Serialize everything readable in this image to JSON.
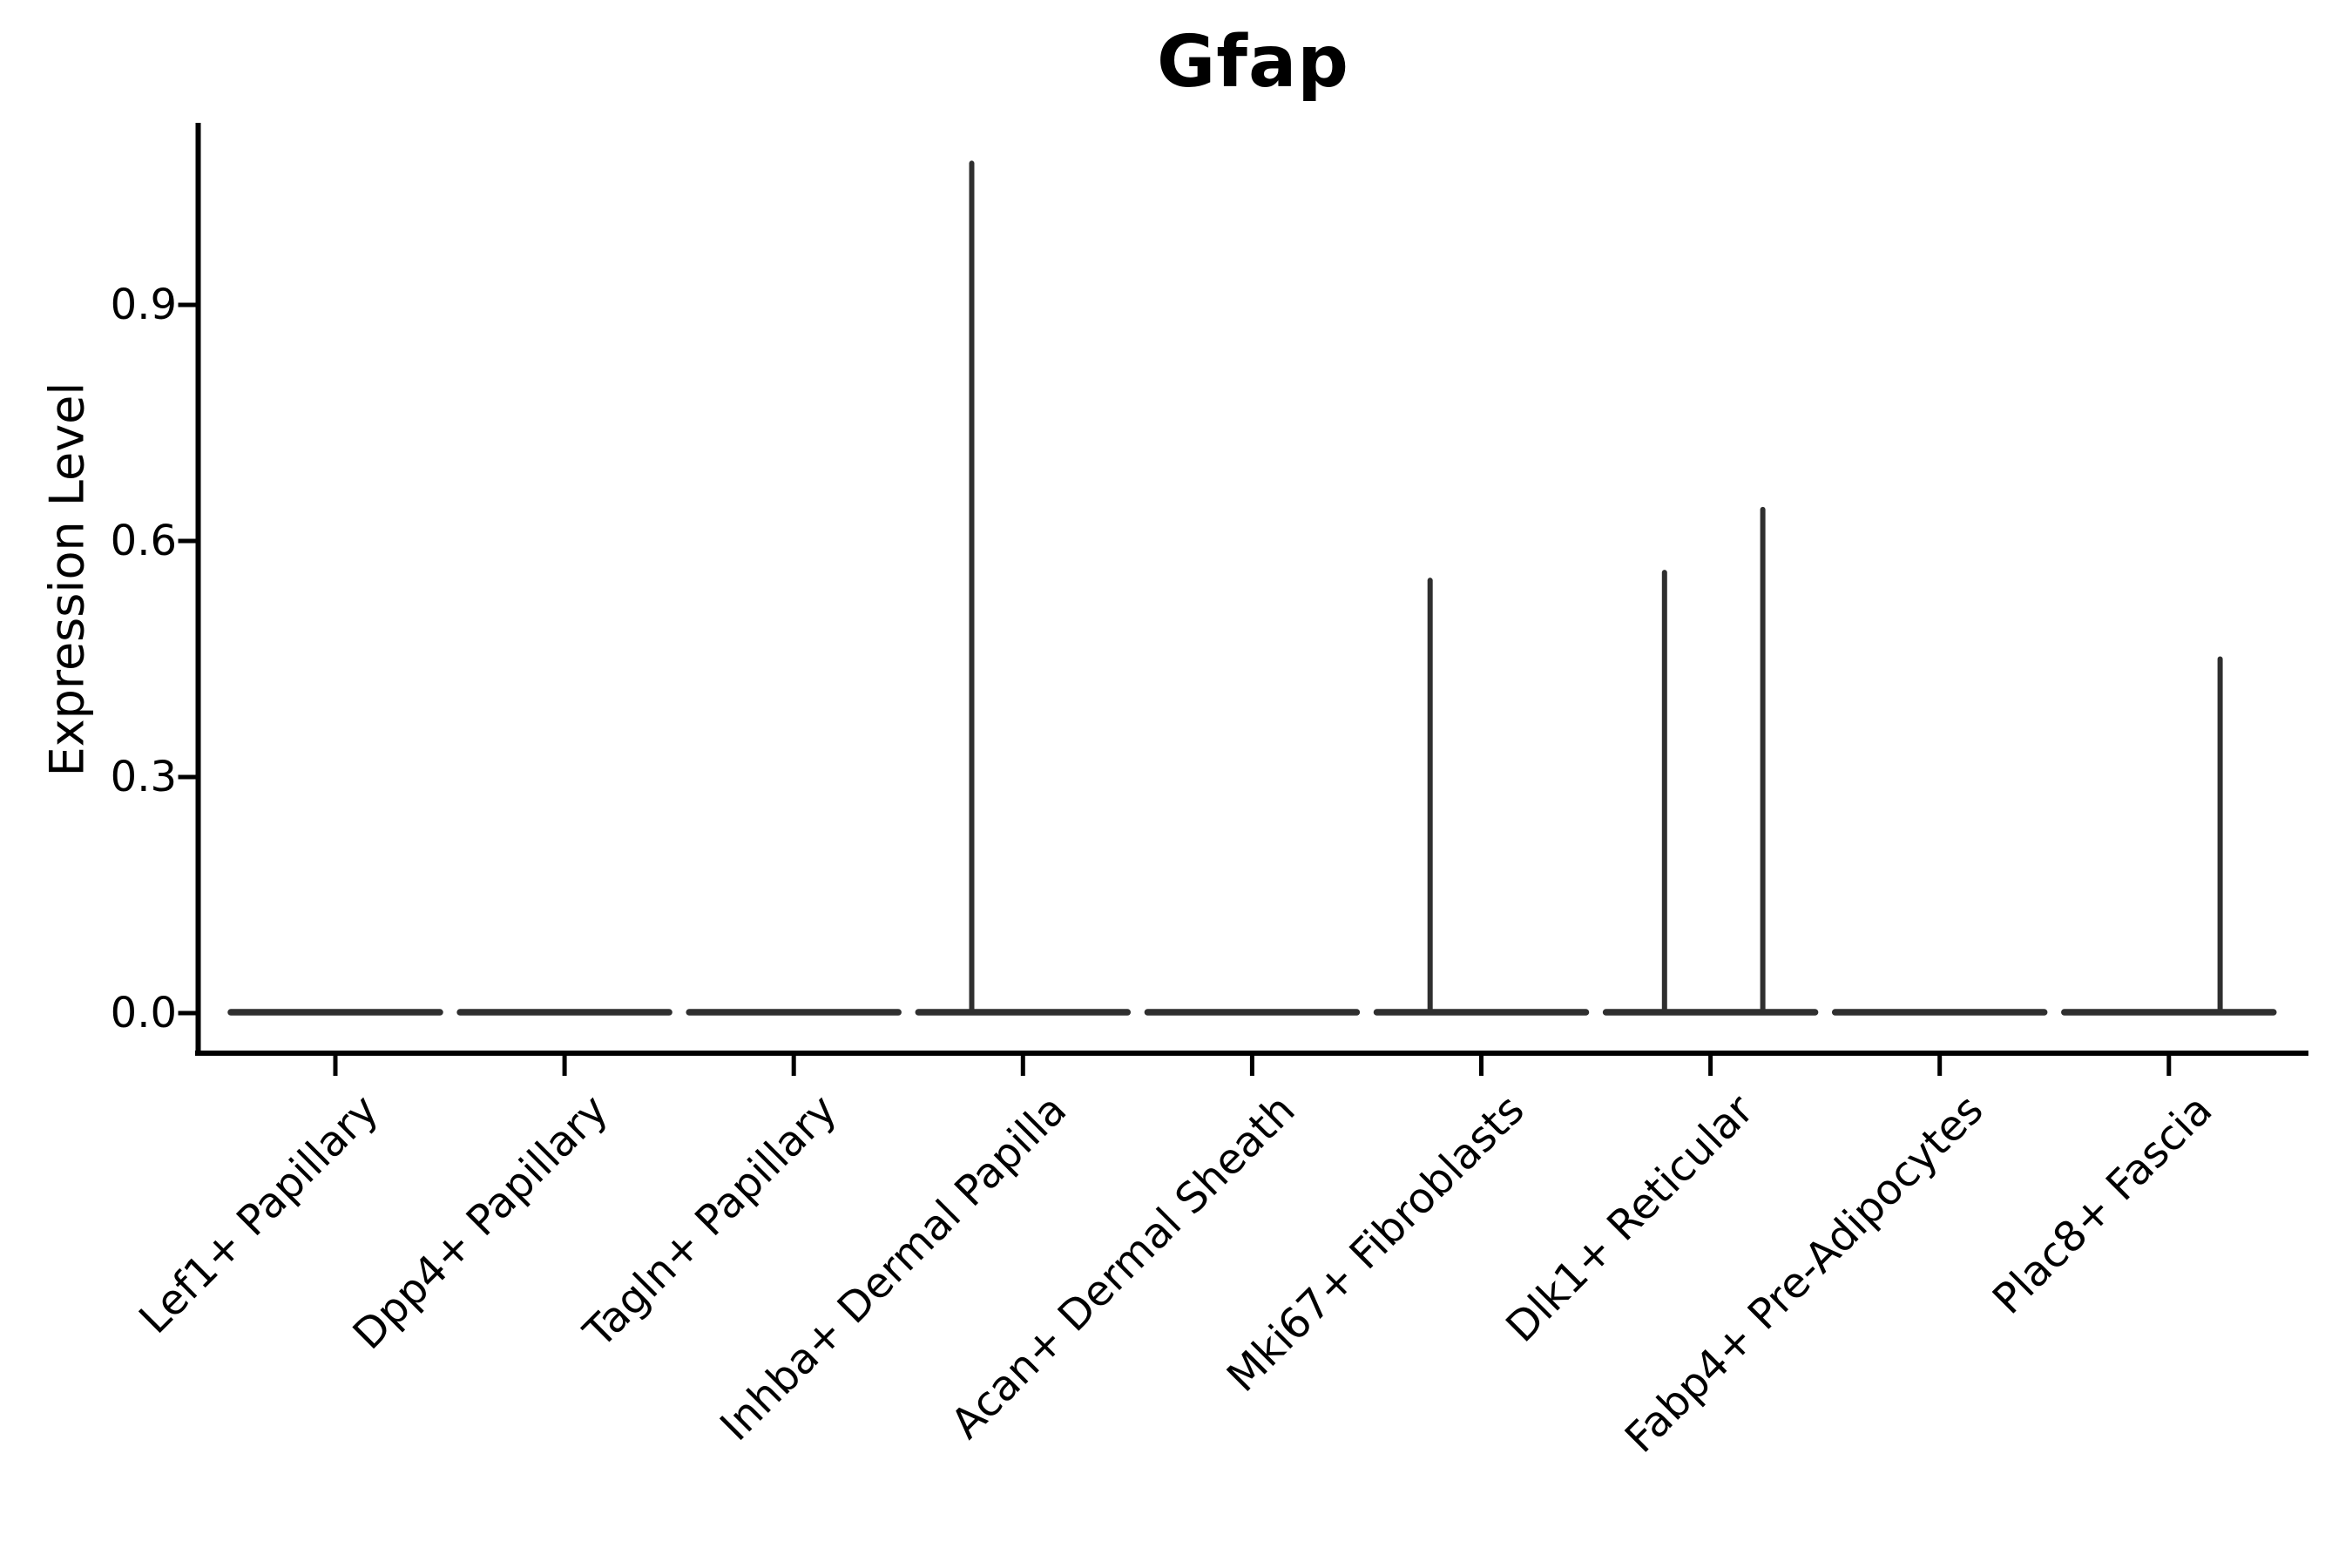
{
  "figure": {
    "title": "Gfap",
    "ylabel": "Expression Level"
  },
  "chart_data": {
    "type": "violin",
    "title": "Gfap",
    "xlabel": "",
    "ylabel": "Expression Level",
    "categories": [
      "Lef1+ Papillary",
      "Dpp4+ Papillary",
      "Tagln+ Papillary",
      "Inhba+ Dermal Papilla",
      "Acan+ Dermal Sheath",
      "Mki67+ Fibroblasts",
      "Dlk1+ Reticular",
      "Fabp4+ Pre-Adipocytes",
      "Plac8+ Fascia"
    ],
    "ytick_labels": [
      "0.0",
      "0.3",
      "0.6",
      "0.9"
    ],
    "ytick_values": [
      0.0,
      0.3,
      0.6,
      0.9
    ],
    "ylim": [
      0.0,
      1.13
    ],
    "grid": false,
    "legend": null,
    "description": "Violin plot of Gfap expression; all populations sit flat at 0 with rare expressing cells shown as thin density spikes.",
    "series": [
      {
        "name": "Lef1+ Papillary",
        "baseline_value": 0,
        "max_value": 0,
        "spikes": []
      },
      {
        "name": "Dpp4+ Papillary",
        "baseline_value": 0,
        "max_value": 0,
        "spikes": []
      },
      {
        "name": "Tagln+ Papillary",
        "baseline_value": 0,
        "max_value": 0,
        "spikes": []
      },
      {
        "name": "Inhba+ Dermal Papilla",
        "baseline_value": 0,
        "max_value": 1.08,
        "spikes": [
          {
            "x_frac": -0.49,
            "value": 1.08
          }
        ]
      },
      {
        "name": "Acan+ Dermal Sheath",
        "baseline_value": 0,
        "max_value": 0,
        "spikes": []
      },
      {
        "name": "Mki67+ Fibroblasts",
        "baseline_value": 0,
        "max_value": 0.55,
        "spikes": [
          {
            "x_frac": -0.49,
            "value": 0.55
          }
        ]
      },
      {
        "name": "Dlk1+ Reticular",
        "baseline_value": 0,
        "max_value": 0.64,
        "spikes": [
          {
            "x_frac": -0.44,
            "value": 0.56
          },
          {
            "x_frac": 0.5,
            "value": 0.64
          }
        ]
      },
      {
        "name": "Fabp4+ Pre-Adipocytes",
        "baseline_value": 0,
        "max_value": 0,
        "spikes": []
      },
      {
        "name": "Plac8+ Fascia",
        "baseline_value": 0,
        "max_value": 0.45,
        "spikes": [
          {
            "x_frac": 0.49,
            "value": 0.45
          }
        ]
      }
    ],
    "colors": {
      "violin": "#2f2f2f",
      "axis": "#000000",
      "text": "#000000",
      "background": "#ffffff"
    }
  }
}
